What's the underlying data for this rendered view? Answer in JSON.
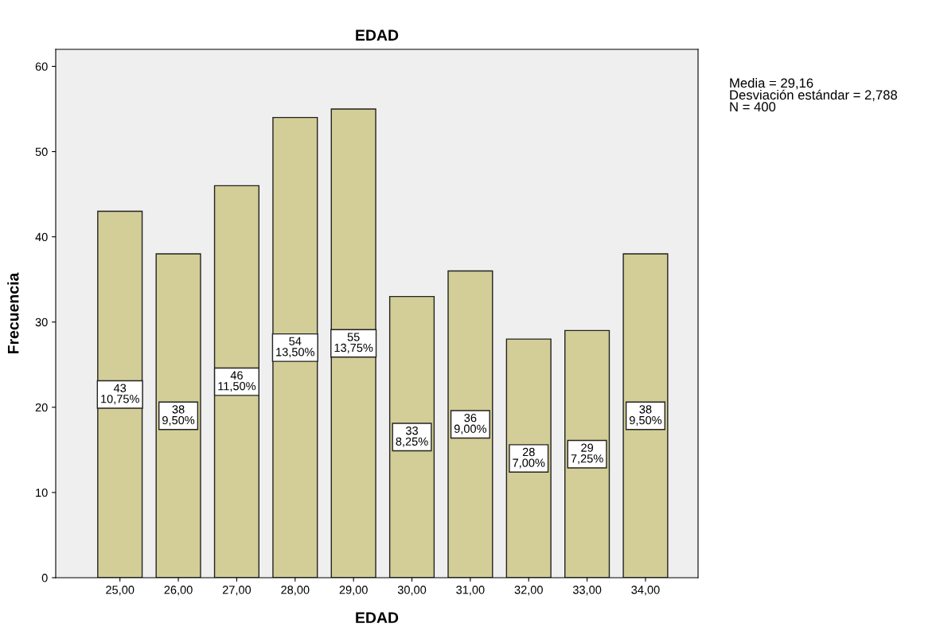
{
  "chart_data": {
    "type": "bar",
    "title": "EDAD",
    "xlabel": "EDAD",
    "ylabel": "Frecuencia",
    "categories": [
      "25,00",
      "26,00",
      "27,00",
      "28,00",
      "29,00",
      "30,00",
      "31,00",
      "32,00",
      "33,00",
      "34,00"
    ],
    "values": [
      43,
      38,
      46,
      54,
      55,
      33,
      36,
      28,
      29,
      38
    ],
    "value_labels": [
      "43\n10,75%",
      "38\n9,50%",
      "46\n11,50%",
      "54\n13,50%",
      "55\n13,75%",
      "33\n8,25%",
      "36\n9,00%",
      "28\n7,00%",
      "29\n7,25%",
      "38\n9,50%"
    ],
    "color": "#d3ce97",
    "ylim": [
      0,
      62
    ],
    "yticks": [
      0,
      10,
      20,
      30,
      40,
      50,
      60
    ],
    "grid": false,
    "legend": false,
    "annotations": [
      "Media = 29,16\nDesviación estándar = 2,788\nN = 400"
    ]
  }
}
